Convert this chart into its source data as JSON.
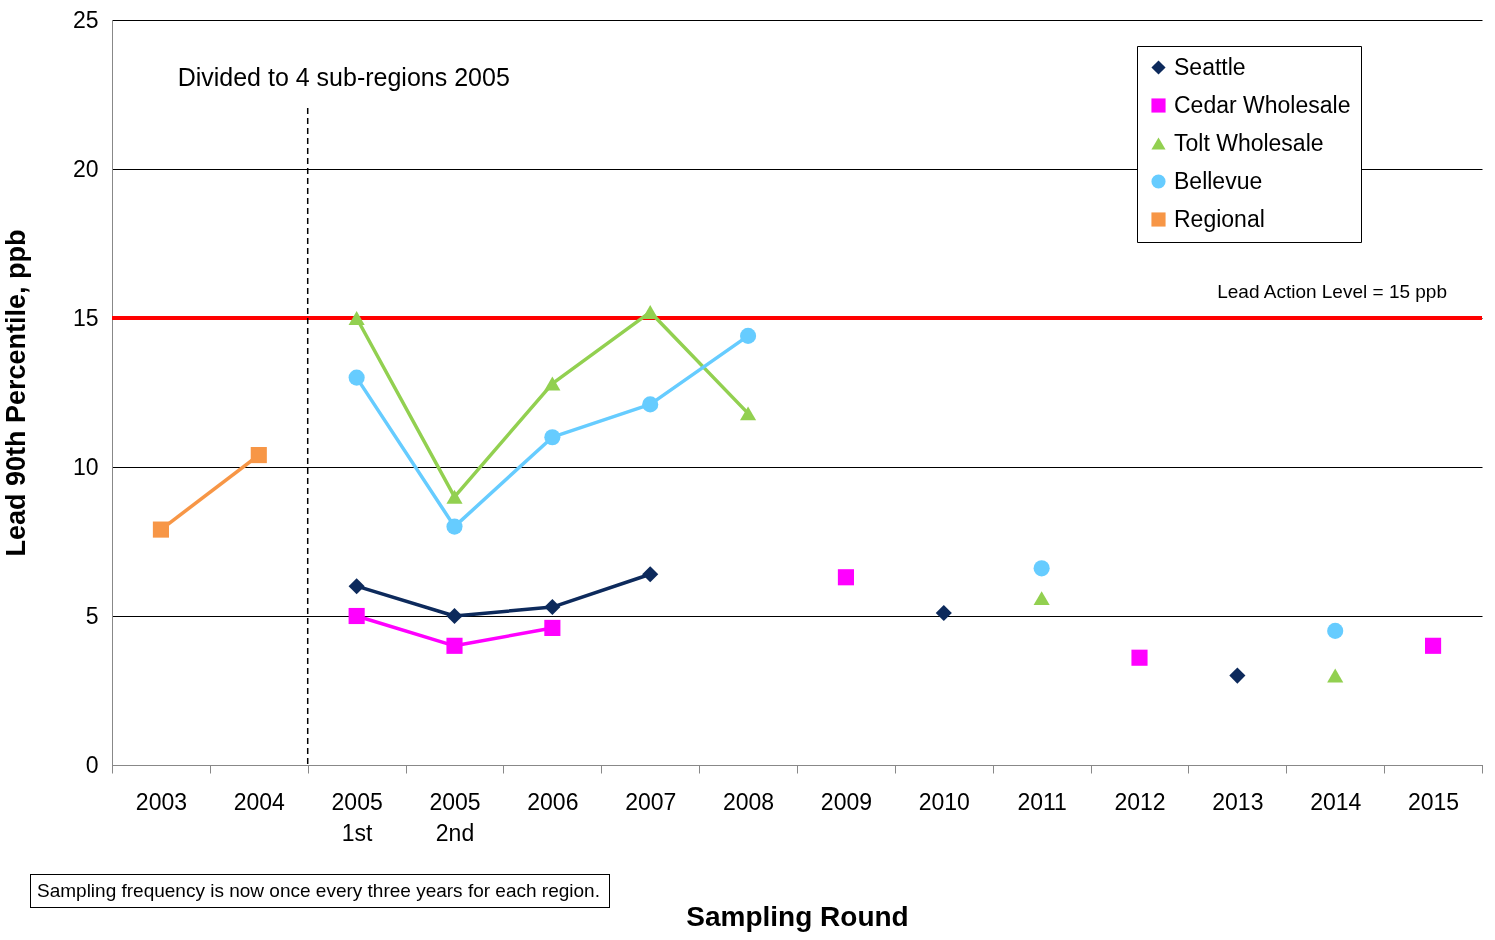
{
  "chart_data": {
    "type": "line",
    "xlabel": "Sampling Round",
    "ylabel": "Lead 90th Percentile, ppb",
    "categories": [
      "2003",
      "2004",
      "2005\n1st",
      "2005\n2nd",
      "2006",
      "2007",
      "2008",
      "2009",
      "2010",
      "2011",
      "2012",
      "2013",
      "2014",
      "2015"
    ],
    "series": [
      {
        "name": "Seattle",
        "color": "#0d2a5c",
        "marker": "diamond",
        "values": [
          null,
          null,
          6.0,
          5.0,
          5.3,
          6.4,
          null,
          null,
          5.1,
          null,
          null,
          3.0,
          null,
          null
        ]
      },
      {
        "name": "Cedar Wholesale",
        "color": "#ff00ff",
        "marker": "square",
        "values": [
          null,
          null,
          5.0,
          4.0,
          4.6,
          null,
          null,
          6.3,
          null,
          null,
          3.6,
          null,
          null,
          4.0
        ]
      },
      {
        "name": "Tolt Wholesale",
        "color": "#92d050",
        "marker": "triangle",
        "values": [
          null,
          null,
          15.0,
          9.0,
          12.8,
          15.2,
          11.8,
          null,
          null,
          5.6,
          null,
          null,
          3.0,
          null
        ]
      },
      {
        "name": "Bellevue",
        "color": "#66ccff",
        "marker": "circle",
        "values": [
          null,
          null,
          13.0,
          8.0,
          11.0,
          12.1,
          14.4,
          null,
          null,
          6.6,
          null,
          null,
          4.5,
          null
        ]
      },
      {
        "name": "Regional",
        "color": "#f79646",
        "marker": "square",
        "values": [
          7.9,
          10.4,
          null,
          null,
          null,
          null,
          null,
          null,
          null,
          null,
          null,
          null,
          null,
          null
        ]
      }
    ],
    "ylim": [
      0,
      25
    ],
    "yticks": [
      0,
      5,
      10,
      15,
      20,
      25
    ],
    "grid": "y",
    "legend": "top right",
    "ref_lines": [
      {
        "axis": "y",
        "value": 15,
        "label": "Lead Action Level = 15 ppb",
        "color": "#ff0000",
        "line_style": "solid"
      },
      {
        "axis": "x",
        "value": "2005\n1st",
        "label": "Divided to 4 sub-regions 2005",
        "color": "#000000",
        "line_style": "dashed"
      }
    ],
    "annotations": [
      "Sampling frequency is now once every three years for each region."
    ]
  }
}
